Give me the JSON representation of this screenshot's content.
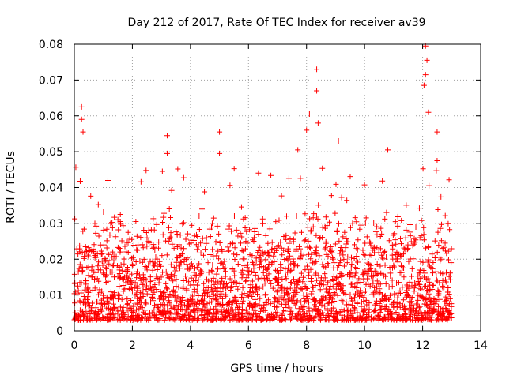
{
  "chart_data": {
    "type": "scatter",
    "title": "Day 212 of 2017, Rate Of TEC Index for receiver av39",
    "xlabel": "GPS time / hours",
    "ylabel": "ROTI / TECUs",
    "xlim": [
      0,
      14
    ],
    "ylim": [
      0,
      0.08
    ],
    "x_ticks": [
      0,
      2,
      4,
      6,
      8,
      10,
      12,
      14
    ],
    "x_tick_labels": [
      "0",
      "2",
      "4",
      "6",
      "8",
      "10",
      "12",
      "14"
    ],
    "y_ticks": [
      0,
      0.01,
      0.02,
      0.03,
      0.04,
      0.05,
      0.06,
      0.07,
      0.08
    ],
    "y_tick_labels": [
      "0",
      "0.01",
      "0.02",
      "0.03",
      "0.04",
      "0.05",
      "0.06",
      "0.07",
      "0.08"
    ],
    "grid": true,
    "marker": "plus",
    "series_color": "#ff0000",
    "x_range_observed": [
      0.0,
      13.0
    ],
    "bulk_band": [
      0.003,
      0.035
    ],
    "peaks": [
      {
        "x": 0.25,
        "y": 0.0625
      },
      {
        "x": 0.25,
        "y": 0.059
      },
      {
        "x": 0.3,
        "y": 0.0555
      },
      {
        "x": 3.2,
        "y": 0.0545
      },
      {
        "x": 3.2,
        "y": 0.0495
      },
      {
        "x": 5.0,
        "y": 0.0555
      },
      {
        "x": 5.0,
        "y": 0.0495
      },
      {
        "x": 7.7,
        "y": 0.0505
      },
      {
        "x": 8.0,
        "y": 0.056
      },
      {
        "x": 8.1,
        "y": 0.0605
      },
      {
        "x": 8.35,
        "y": 0.073
      },
      {
        "x": 8.35,
        "y": 0.067
      },
      {
        "x": 8.4,
        "y": 0.058
      },
      {
        "x": 9.1,
        "y": 0.053
      },
      {
        "x": 10.8,
        "y": 0.0505
      },
      {
        "x": 12.1,
        "y": 0.0795
      },
      {
        "x": 12.15,
        "y": 0.0755
      },
      {
        "x": 12.1,
        "y": 0.0715
      },
      {
        "x": 12.05,
        "y": 0.0685
      },
      {
        "x": 12.2,
        "y": 0.061
      },
      {
        "x": 12.5,
        "y": 0.0555
      },
      {
        "x": 12.5,
        "y": 0.0475
      }
    ]
  }
}
